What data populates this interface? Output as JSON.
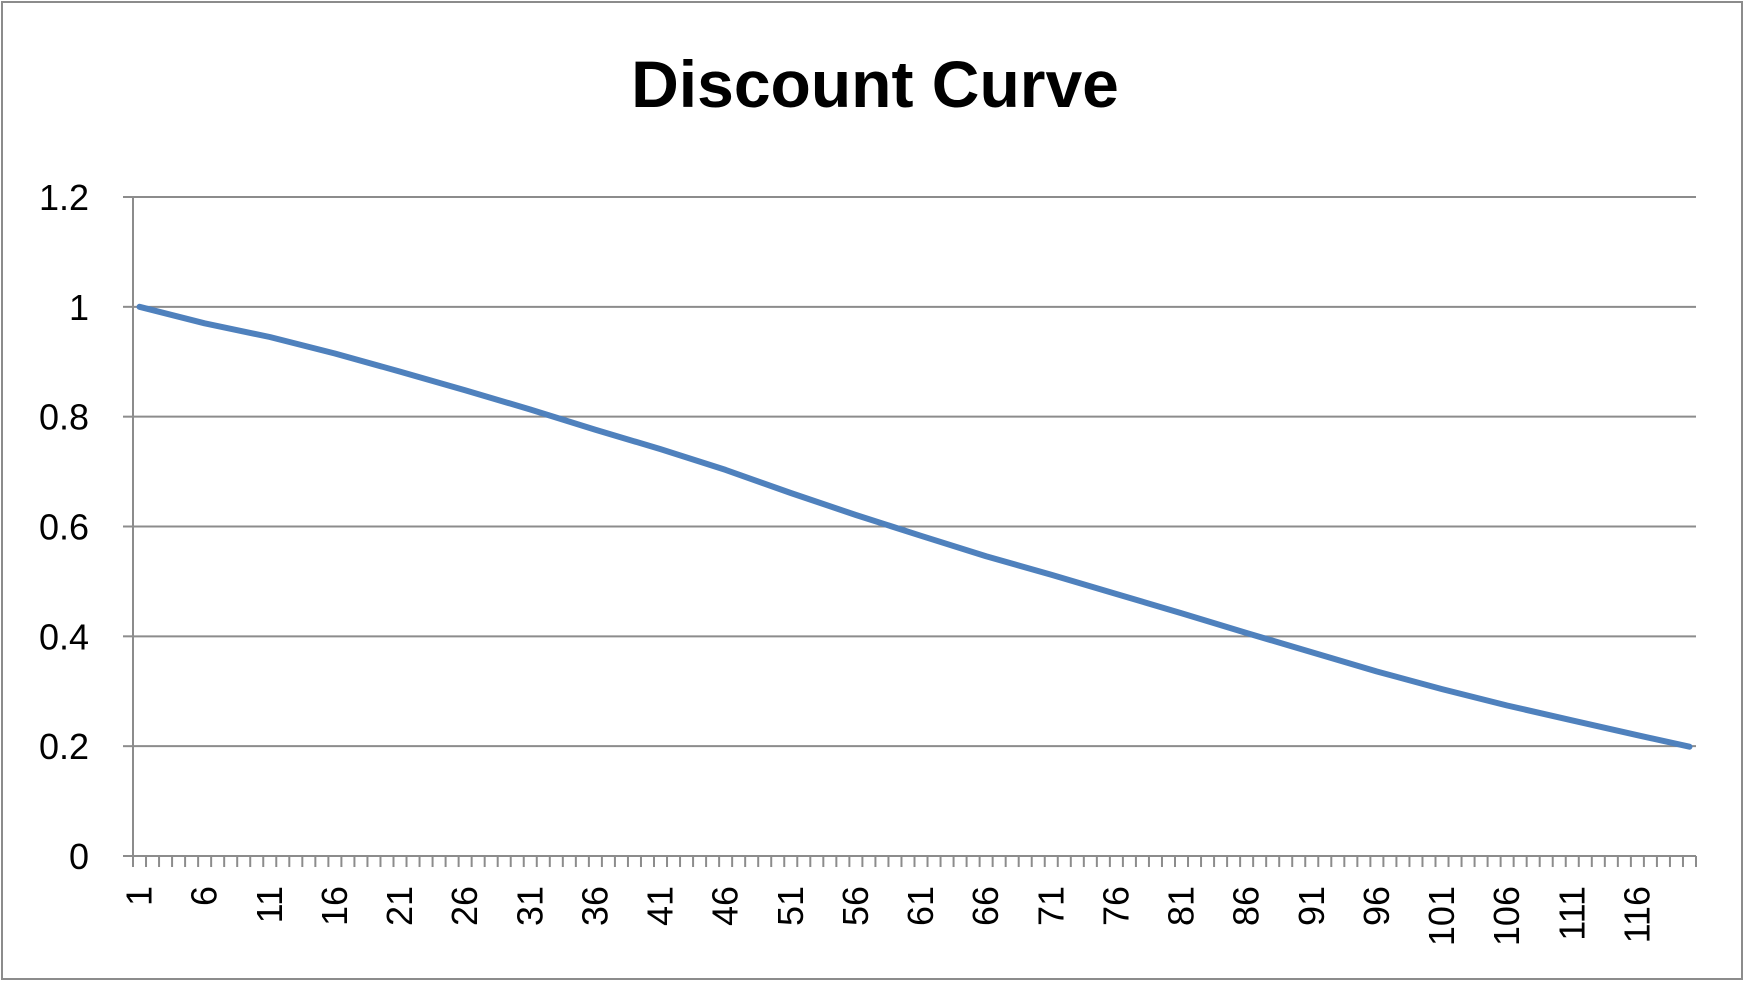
{
  "chart_data": {
    "type": "line",
    "title": "Discount Curve",
    "xlabel": "",
    "ylabel": "",
    "ylim": [
      0,
      1.2
    ],
    "yticks": [
      "0",
      "0.2",
      "0.4",
      "0.6",
      "0.8",
      "1",
      "1.2"
    ],
    "x_range": [
      1,
      120
    ],
    "xtick_labels": [
      "1",
      "6",
      "11",
      "16",
      "21",
      "26",
      "31",
      "36",
      "41",
      "46",
      "51",
      "56",
      "61",
      "66",
      "71",
      "76",
      "81",
      "86",
      "91",
      "96",
      "101",
      "106",
      "111",
      "116"
    ],
    "grid": "horizontal",
    "legend": "none",
    "line_color": "#4f81bd",
    "grid_color": "#8c8c8c",
    "series": [
      {
        "x": [
          1,
          6,
          11,
          16,
          21,
          26,
          31,
          36,
          41,
          46,
          51,
          56,
          61,
          66,
          71,
          76,
          81,
          86,
          91,
          96,
          101,
          106,
          111,
          116,
          120
        ],
        "values": [
          1.0,
          0.97,
          0.945,
          0.915,
          0.882,
          0.848,
          0.813,
          0.776,
          0.741,
          0.703,
          0.661,
          0.621,
          0.583,
          0.546,
          0.512,
          0.477,
          0.442,
          0.406,
          0.371,
          0.336,
          0.304,
          0.274,
          0.247,
          0.22,
          0.199
        ]
      }
    ]
  }
}
